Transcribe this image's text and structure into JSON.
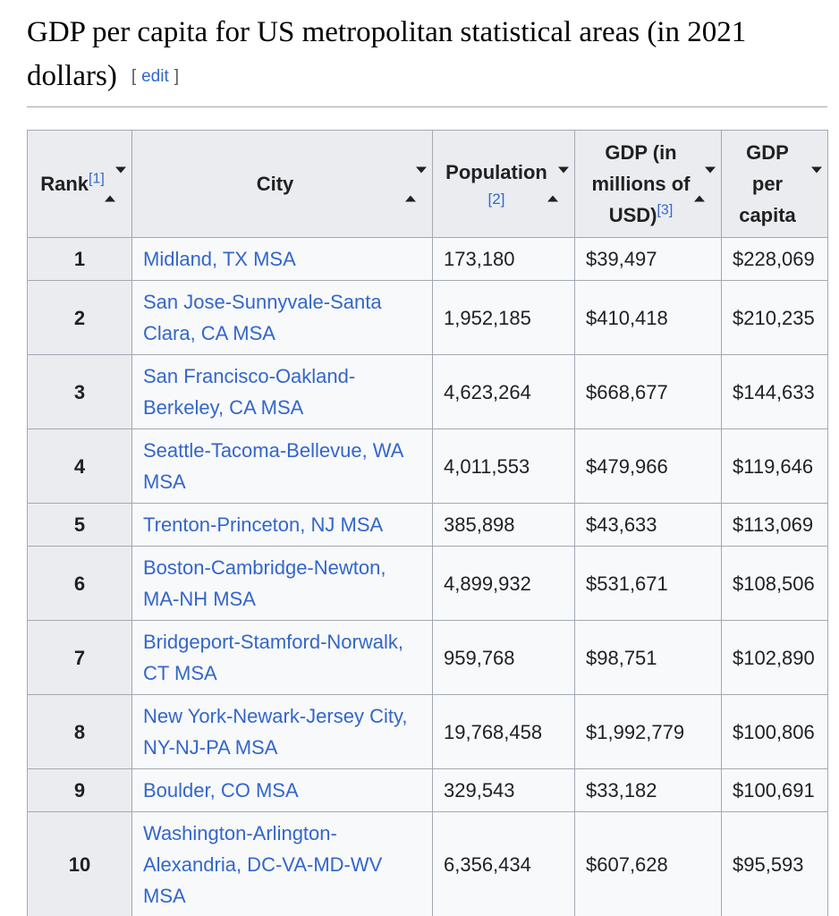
{
  "heading": {
    "title": "GDP per capita for US metropolitan statistical areas (in 2021 dollars)",
    "edit_open": "[",
    "edit_label": "edit",
    "edit_close": "]"
  },
  "table": {
    "columns": [
      {
        "label": "Rank",
        "ref": "[1]",
        "sort_state": "unsorted"
      },
      {
        "label": "City",
        "ref": "",
        "sort_state": "unsorted"
      },
      {
        "label": "Population",
        "ref": "[2]",
        "sort_state": "unsorted"
      },
      {
        "label": "GDP (in millions of USD)",
        "ref": "[3]",
        "sort_state": "unsorted"
      },
      {
        "label": "GDP per capita",
        "ref": "",
        "sort_state": "descending"
      }
    ],
    "rows": [
      {
        "rank": "1",
        "city": "Midland, TX MSA",
        "population": "173,180",
        "gdp": "$39,497",
        "gdp_per_capita": "$228,069"
      },
      {
        "rank": "2",
        "city": "San Jose-Sunnyvale-Santa Clara, CA MSA",
        "population": "1,952,185",
        "gdp": "$410,418",
        "gdp_per_capita": "$210,235"
      },
      {
        "rank": "3",
        "city": "San Francisco-Oakland-Berkeley, CA MSA",
        "population": "4,623,264",
        "gdp": "$668,677",
        "gdp_per_capita": "$144,633"
      },
      {
        "rank": "4",
        "city": "Seattle-Tacoma-Bellevue, WA MSA",
        "population": "4,011,553",
        "gdp": "$479,966",
        "gdp_per_capita": "$119,646"
      },
      {
        "rank": "5",
        "city": "Trenton-Princeton, NJ MSA",
        "population": "385,898",
        "gdp": "$43,633",
        "gdp_per_capita": "$113,069"
      },
      {
        "rank": "6",
        "city": "Boston-Cambridge-Newton, MA-NH MSA",
        "population": "4,899,932",
        "gdp": "$531,671",
        "gdp_per_capita": "$108,506"
      },
      {
        "rank": "7",
        "city": "Bridgeport-Stamford-Norwalk, CT MSA",
        "population": "959,768",
        "gdp": "$98,751",
        "gdp_per_capita": "$102,890"
      },
      {
        "rank": "8",
        "city": "New York-Newark-Jersey City, NY-NJ-PA MSA",
        "population": "19,768,458",
        "gdp": "$1,992,779",
        "gdp_per_capita": "$100,806"
      },
      {
        "rank": "9",
        "city": "Boulder, CO MSA",
        "population": "329,543",
        "gdp": "$33,182",
        "gdp_per_capita": "$100,691"
      },
      {
        "rank": "10",
        "city": "Washington-Arlington-Alexandria, DC-VA-MD-WV MSA",
        "population": "6,356,434",
        "gdp": "$607,628",
        "gdp_per_capita": "$95,593"
      }
    ]
  },
  "colors": {
    "link": "#3366cc",
    "header_background": "#eaecf0",
    "cell_background": "#f8f9fa",
    "border": "#a2a9b1",
    "text": "#202122",
    "edit_brackets": "#54595d"
  }
}
